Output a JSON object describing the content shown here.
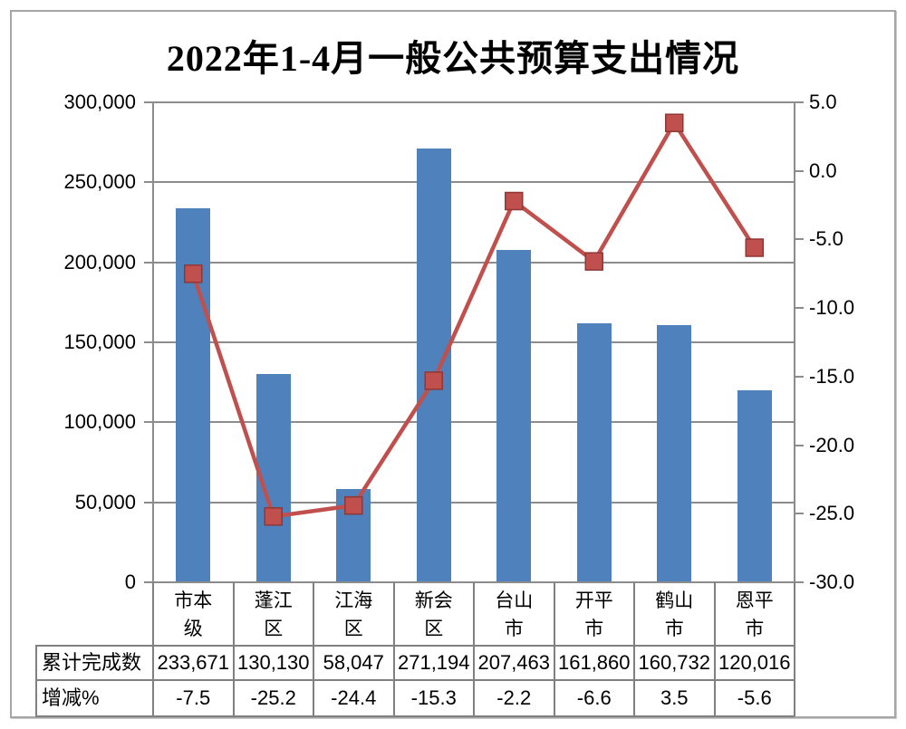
{
  "window": {
    "background": "#FFFFFF",
    "frame_border_color": "#A6A6A6"
  },
  "chart_data": {
    "type": "combo-bar-line",
    "title": "2022年1-4月一般公共预算支出情况",
    "categories": [
      "市本级",
      "蓬江区",
      "江海区",
      "新会区",
      "台山市",
      "开平市",
      "鹤山市",
      "恩平市"
    ],
    "series": [
      {
        "name": "累计完成数",
        "type": "bar",
        "axis": "left",
        "color": "#4F81BD",
        "values": [
          233671,
          130130,
          58047,
          271194,
          207463,
          161860,
          160732,
          120016
        ],
        "labels": [
          "233,671",
          "130,130",
          "58,047",
          "271,194",
          "207,463",
          "161,860",
          "160,732",
          "120,016"
        ]
      },
      {
        "name": "增减%",
        "type": "line",
        "axis": "right",
        "color": "#C0504D",
        "marker": "square",
        "marker_border": "#903734",
        "values": [
          -7.5,
          -25.2,
          -24.4,
          -15.3,
          -2.2,
          -6.6,
          3.5,
          -5.6
        ],
        "labels": [
          "-7.5",
          "-25.2",
          "-24.4",
          "-15.3",
          "-2.2",
          "-6.6",
          "3.5",
          "-5.6"
        ]
      }
    ],
    "left_axis": {
      "min": 0,
      "max": 300000,
      "step": 50000,
      "tick_labels": [
        "0",
        "50,000",
        "100,000",
        "150,000",
        "200,000",
        "250,000",
        "300,000"
      ]
    },
    "right_axis": {
      "min": -30,
      "max": 5,
      "step": 5,
      "tick_labels": [
        "-30.0",
        "-25.0",
        "-20.0",
        "-15.0",
        "-10.0",
        "-5.0",
        "0.0",
        "5.0"
      ]
    },
    "grid": true,
    "legend": "none",
    "data_table_shown": true,
    "gridline_color": "#8C8C8C",
    "axis_color": "#8C8C8C",
    "table_border_color": "#808080"
  }
}
